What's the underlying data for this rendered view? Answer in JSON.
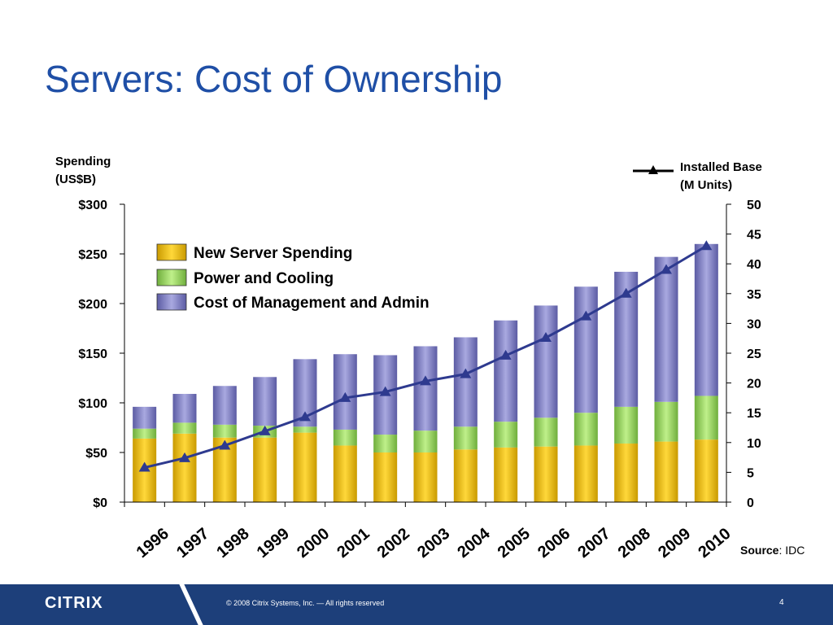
{
  "slide": {
    "title": "Servers: Cost of Ownership",
    "logo": "CITRIX",
    "copyright": "© 2008 Citrix Systems, Inc. — All rights reserved",
    "page_number": "4"
  },
  "source": {
    "label": "Source",
    "value": ": IDC"
  },
  "chart_data": {
    "type": "bar",
    "stacked": true,
    "categories": [
      "1996",
      "1997",
      "1998",
      "1999",
      "2000",
      "2001",
      "2002",
      "2003",
      "2004",
      "2005",
      "2006",
      "2007",
      "2008",
      "2009",
      "2010"
    ],
    "series": [
      {
        "name": "New Server Spending",
        "color": "#f0c419",
        "values": [
          64,
          69,
          65,
          65,
          70,
          57,
          50,
          50,
          53,
          55,
          56,
          57,
          59,
          61,
          63
        ]
      },
      {
        "name": "Power and Cooling",
        "color": "#9fd46a",
        "values": [
          10,
          11,
          13,
          12,
          6,
          16,
          18,
          22,
          23,
          26,
          29,
          33,
          37,
          40,
          44
        ]
      },
      {
        "name": "Cost of Management and Admin",
        "color": "#8585c4",
        "values": [
          22,
          29,
          39,
          49,
          68,
          76,
          80,
          85,
          90,
          102,
          113,
          127,
          136,
          146,
          153
        ]
      }
    ],
    "line_series": {
      "name": "Installed Base (M Units)",
      "label_lines": [
        "Installed Base",
        "(M Units)"
      ],
      "color": "#2e3a8f",
      "marker": "triangle",
      "values": [
        5.8,
        7.4,
        9.5,
        11.9,
        14.3,
        17.5,
        18.5,
        20.3,
        21.5,
        24.6,
        27.6,
        31.2,
        35,
        39,
        43
      ]
    },
    "y_left": {
      "label_lines": [
        "Spending",
        "(US$B)"
      ],
      "min": 0,
      "max": 300,
      "ticks": [
        0,
        50,
        100,
        150,
        200,
        250,
        300
      ],
      "tick_labels": [
        "$0",
        "$50",
        "$100",
        "$150",
        "$200",
        "$250",
        "$300"
      ]
    },
    "y_right": {
      "min": 0,
      "max": 50,
      "ticks": [
        0,
        5,
        10,
        15,
        20,
        25,
        30,
        35,
        40,
        45,
        50
      ],
      "tick_labels": [
        "0",
        "5",
        "10",
        "15",
        "20",
        "25",
        "30",
        "35",
        "40",
        "45",
        "50"
      ]
    },
    "legend": "top-left inside plot",
    "grid": false
  }
}
